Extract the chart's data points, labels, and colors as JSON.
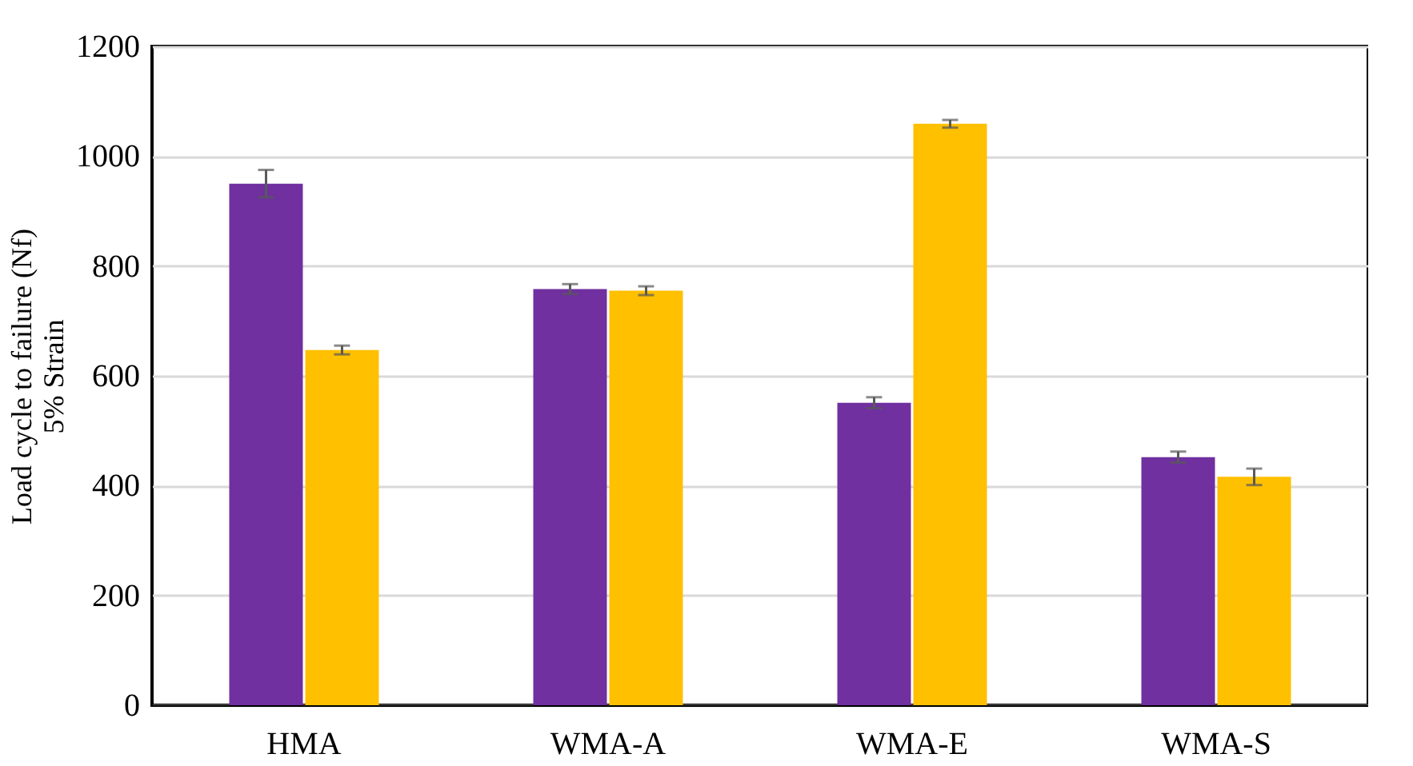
{
  "chart_data": {
    "type": "bar",
    "ylabel": "Load cycle to failure (Nf)\n5% Strain",
    "categories": [
      "HMA",
      "WMA-A",
      "WMA-E",
      "WMA-S"
    ],
    "series": [
      {
        "color": "#7030a0",
        "values": [
          950,
          758,
          551,
          452
        ],
        "errors": [
          25,
          9,
          10,
          10
        ]
      },
      {
        "color": "#ffc000",
        "values": [
          647,
          755,
          1059,
          416
        ],
        "errors": [
          8,
          8,
          7,
          15
        ]
      }
    ],
    "ylim": [
      0,
      1200
    ],
    "yticks": [
      0,
      200,
      400,
      600,
      800,
      1000,
      1200
    ],
    "grid": "y",
    "legend": false
  }
}
